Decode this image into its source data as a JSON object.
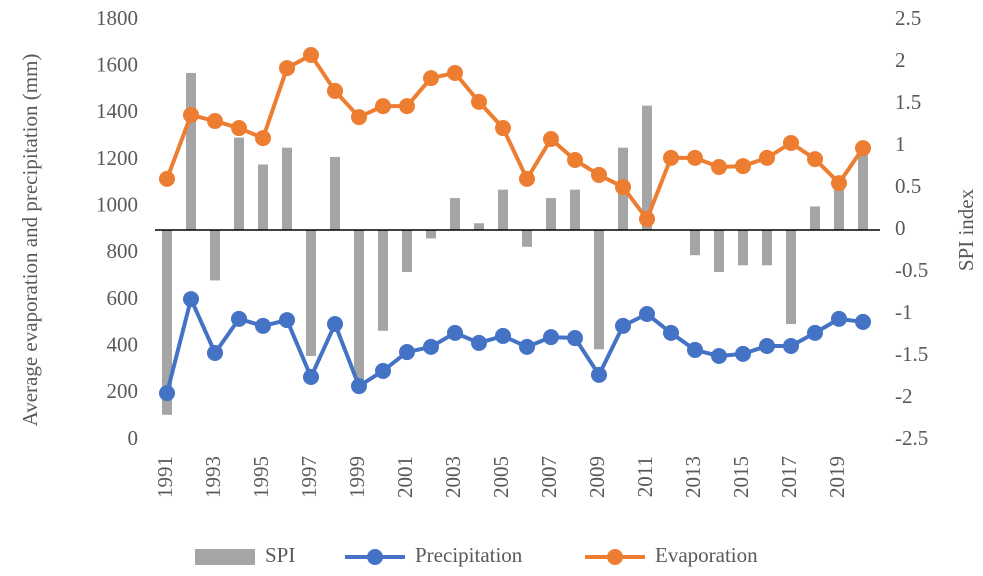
{
  "chart_data": {
    "type": "combo",
    "y_label": "Average evaporation and precipitation (mm)",
    "y2_label": "SPI index",
    "categories": [
      "1991",
      null,
      "1993",
      null,
      "1995",
      null,
      "1997",
      null,
      "1999",
      null,
      "2001",
      null,
      "2003",
      null,
      "2005",
      null,
      "2007",
      null,
      "2009",
      null,
      "2011",
      null,
      "2013",
      null,
      "2015",
      null,
      "2017",
      null,
      "2019",
      null
    ],
    "ylim": [
      0,
      1800
    ],
    "yticks": [
      0,
      200,
      400,
      600,
      800,
      1000,
      1200,
      1400,
      1600,
      1800
    ],
    "y2lim": [
      -2.5,
      2.5
    ],
    "y2ticks": [
      -2.5,
      -2,
      -1.5,
      -1,
      -0.5,
      0,
      0.5,
      1,
      1.5,
      2,
      2.5
    ],
    "legend": "bottom",
    "series": [
      {
        "name": "SPI",
        "type": "bar",
        "axis": "y2",
        "color": "#a5a5a5",
        "values": [
          -2.2,
          1.87,
          -0.6,
          1.1,
          0.78,
          0.98,
          -1.5,
          0.87,
          -1.85,
          -1.2,
          -0.5,
          -0.1,
          0.38,
          0.08,
          0.48,
          -0.2,
          0.38,
          0.48,
          -1.42,
          0.98,
          1.48,
          0,
          -0.3,
          -0.5,
          -0.42,
          -0.42,
          -1.12,
          0.28,
          0.52,
          0.9
        ]
      },
      {
        "name": "Precipitation",
        "type": "line",
        "color": "#4472c4",
        "values": [
          201,
          604,
          373,
          519,
          489,
          514,
          270,
          497,
          231,
          296,
          377,
          399,
          459,
          416,
          446,
          399,
          441,
          437,
          279,
          489,
          540,
          459,
          386,
          360,
          369,
          403,
          403,
          459,
          519,
          506
        ]
      },
      {
        "name": "Evaporation",
        "type": "line",
        "color": "#ed7d31",
        "values": [
          1119,
          1393,
          1367,
          1337,
          1294,
          1594,
          1650,
          1496,
          1384,
          1431,
          1431,
          1551,
          1573,
          1449,
          1337,
          1119,
          1290,
          1200,
          1136,
          1084,
          947,
          1209,
          1209,
          1170,
          1174,
          1209,
          1273,
          1204,
          1101,
          1251
        ]
      }
    ]
  }
}
